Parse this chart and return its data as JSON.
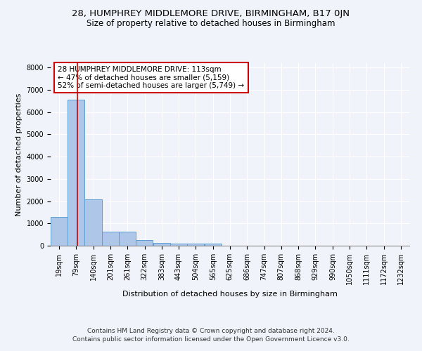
{
  "title1": "28, HUMPHREY MIDDLEMORE DRIVE, BIRMINGHAM, B17 0JN",
  "title2": "Size of property relative to detached houses in Birmingham",
  "xlabel": "Distribution of detached houses by size in Birmingham",
  "ylabel": "Number of detached properties",
  "footer1": "Contains HM Land Registry data © Crown copyright and database right 2024.",
  "footer2": "Contains public sector information licensed under the Open Government Licence v3.0.",
  "annotation_line1": "28 HUMPHREY MIDDLEMORE DRIVE: 113sqm",
  "annotation_line2": "← 47% of detached houses are smaller (5,159)",
  "annotation_line3": "52% of semi-detached houses are larger (5,749) →",
  "bar_color": "#aec6e8",
  "bar_edge_color": "#5a9fd4",
  "vline_color": "#cc0000",
  "vline_x": 113,
  "categories": [
    19,
    79,
    140,
    201,
    261,
    322,
    383,
    443,
    504,
    565,
    625,
    686,
    747,
    807,
    868,
    929,
    990,
    1050,
    1111,
    1172,
    1232
  ],
  "bin_width": 61,
  "values": [
    1300,
    6570,
    2090,
    620,
    620,
    255,
    140,
    110,
    80,
    80,
    0,
    0,
    0,
    0,
    0,
    0,
    0,
    0,
    0,
    0,
    0
  ],
  "ylim": [
    0,
    8200
  ],
  "yticks": [
    0,
    1000,
    2000,
    3000,
    4000,
    5000,
    6000,
    7000,
    8000
  ],
  "bg_color": "#f0f4fa",
  "plot_bg_color": "#f0f4fa",
  "grid_color": "#ffffff",
  "title1_fontsize": 9.5,
  "title2_fontsize": 8.5,
  "xlabel_fontsize": 8,
  "ylabel_fontsize": 8,
  "annotation_fontsize": 7.5,
  "footer_fontsize": 6.5,
  "tick_fontsize": 7
}
